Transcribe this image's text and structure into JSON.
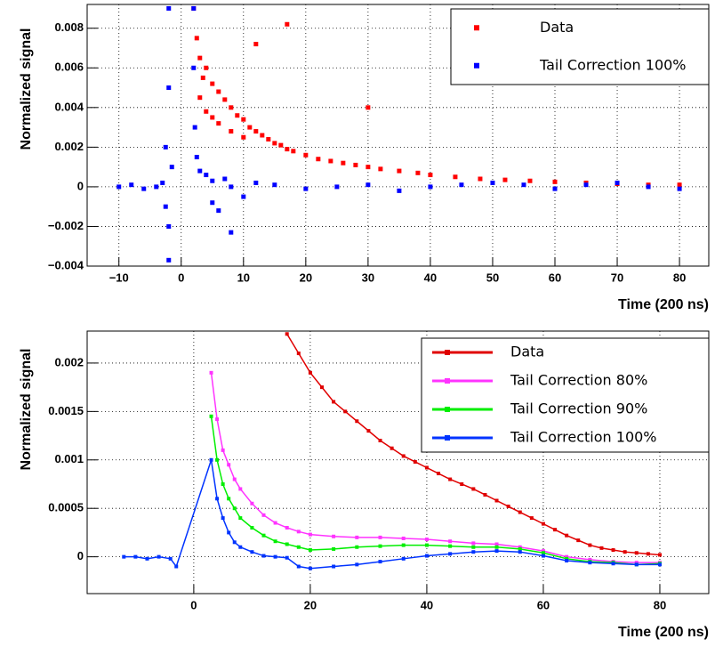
{
  "chart_data": [
    {
      "type": "scatter",
      "y_label": "Normalized signal",
      "x_label": "Time (200 ns)",
      "xlim": [
        -15.1,
        84.7
      ],
      "ylim": [
        -0.004,
        0.0092
      ],
      "xticks": [
        {
          "value": -10,
          "label": "−10"
        },
        0,
        10,
        20,
        30,
        40,
        50,
        60,
        70,
        80
      ],
      "yticks": [
        {
          "value": -0.004,
          "label": "−0.004"
        },
        {
          "value": -0.002,
          "label": "−0.002"
        },
        0,
        0.002,
        0.004,
        0.006,
        0.008
      ],
      "grid": true,
      "legend": "upper right",
      "series": [
        {
          "name": "Data",
          "color": "#ff0000",
          "x": [
            2,
            2.5,
            3,
            3,
            3.5,
            4,
            4,
            5,
            5,
            6,
            6,
            7,
            8,
            8,
            9,
            10,
            10,
            11,
            12,
            13,
            14,
            15,
            16,
            17,
            18,
            20,
            22,
            24,
            26,
            28,
            30,
            32,
            35,
            38,
            40,
            44,
            48,
            52,
            56,
            60,
            65,
            70,
            75,
            80,
            17,
            30,
            12
          ],
          "values": [
            0.009,
            0.0075,
            0.0065,
            0.0045,
            0.0055,
            0.006,
            0.0038,
            0.0052,
            0.0035,
            0.0048,
            0.0032,
            0.0044,
            0.004,
            0.0028,
            0.0036,
            0.0034,
            0.0025,
            0.003,
            0.0028,
            0.0026,
            0.0024,
            0.0022,
            0.0021,
            0.0019,
            0.0018,
            0.0016,
            0.0014,
            0.0013,
            0.0012,
            0.0011,
            0.001,
            0.0009,
            0.0008,
            0.0007,
            0.0006,
            0.0005,
            0.0004,
            0.00035,
            0.0003,
            0.00025,
            0.0002,
            0.00015,
            0.0001,
            0.0001,
            0.0082,
            0.004,
            0.0072
          ]
        },
        {
          "name": "Tail Correction 100%",
          "color": "#0000ff",
          "x": [
            -10,
            -8,
            -6,
            -4,
            -3,
            -2.5,
            -2.5,
            -2,
            -2,
            -2,
            -1.5,
            2,
            2,
            2.2,
            2.5,
            3,
            4,
            5,
            5,
            6,
            7,
            8,
            8,
            10,
            12,
            15,
            20,
            25,
            30,
            35,
            40,
            45,
            50,
            55,
            60,
            65,
            70,
            75,
            80,
            -2
          ],
          "values": [
            0,
            0.0001,
            -0.0001,
            0,
            0.0002,
            0.002,
            -0.001,
            0.005,
            0.009,
            -0.002,
            0.001,
            0.009,
            0.006,
            0.003,
            0.0015,
            0.0008,
            0.0006,
            -0.0008,
            0.0003,
            -0.0012,
            0.0004,
            -0.0023,
            0,
            -0.0005,
            0.0002,
            0.0001,
            -0.0001,
            0,
            0.0001,
            -0.0002,
            0,
            0.0001,
            0.0002,
            0.0001,
            -0.0001,
            0.0001,
            0.0002,
            0,
            -0.0001,
            -0.0037
          ]
        }
      ]
    },
    {
      "type": "line",
      "y_label": "Normalized signal",
      "x_label": "Time (200 ns)",
      "xlim": [
        -18.3,
        88.4
      ],
      "ylim": [
        -0.00038,
        0.00233
      ],
      "xticks": [
        0,
        20,
        40,
        60,
        80
      ],
      "yticks": [
        0,
        0.0005,
        0.001,
        0.0015,
        0.002
      ],
      "grid": true,
      "legend": "upper right",
      "series": [
        {
          "name": "Data",
          "color": "#e00000",
          "x": [
            16,
            18,
            20,
            22,
            24,
            26,
            28,
            30,
            32,
            34,
            36,
            38,
            40,
            42,
            44,
            46,
            48,
            50,
            52,
            54,
            56,
            58,
            60,
            62,
            64,
            66,
            68,
            70,
            72,
            74,
            76,
            78,
            80
          ],
          "values": [
            0.0023,
            0.0021,
            0.0019,
            0.00175,
            0.0016,
            0.0015,
            0.0014,
            0.0013,
            0.0012,
            0.00112,
            0.00104,
            0.00098,
            0.00092,
            0.00086,
            0.0008,
            0.00075,
            0.0007,
            0.00064,
            0.00058,
            0.00052,
            0.00046,
            0.0004,
            0.00034,
            0.00028,
            0.00022,
            0.00017,
            0.00012,
            9e-05,
            7e-05,
            5e-05,
            4e-05,
            3e-05,
            2e-05
          ]
        },
        {
          "name": "Tail Correction 80%",
          "color": "#ff33ff",
          "x": [
            3,
            4,
            5,
            6,
            7,
            8,
            10,
            12,
            14,
            16,
            18,
            20,
            24,
            28,
            32,
            36,
            40,
            44,
            48,
            52,
            56,
            60,
            64,
            68,
            72,
            76,
            80
          ],
          "values": [
            0.0019,
            0.00142,
            0.0011,
            0.00095,
            0.0008,
            0.0007,
            0.00055,
            0.00043,
            0.00035,
            0.0003,
            0.00026,
            0.00023,
            0.00021,
            0.0002,
            0.0002,
            0.00019,
            0.00018,
            0.00016,
            0.00014,
            0.00013,
            0.0001,
            6e-05,
            0,
            -3e-05,
            -5e-05,
            -6e-05,
            -6e-05
          ]
        },
        {
          "name": "Tail Correction 90%",
          "color": "#00ee00",
          "x": [
            3,
            4,
            5,
            6,
            7,
            8,
            10,
            12,
            14,
            16,
            18,
            20,
            24,
            28,
            32,
            36,
            40,
            44,
            48,
            52,
            56,
            60,
            64,
            68,
            72,
            76,
            80
          ],
          "values": [
            0.00145,
            0.001,
            0.00075,
            0.0006,
            0.0005,
            0.0004,
            0.0003,
            0.00022,
            0.00016,
            0.00013,
            0.0001,
            7e-05,
            8e-05,
            0.0001,
            0.00011,
            0.00012,
            0.00012,
            0.00011,
            0.0001,
            0.0001,
            8e-05,
            4e-05,
            -2e-05,
            -5e-05,
            -6e-05,
            -8e-05,
            -7e-05
          ]
        },
        {
          "name": "Tail Correction 100%",
          "color": "#0033ff",
          "x": [
            -12,
            -10,
            -8,
            -6,
            -4,
            -3,
            3,
            4,
            5,
            6,
            7,
            8,
            10,
            12,
            14,
            16,
            18,
            20,
            24,
            28,
            32,
            36,
            40,
            44,
            48,
            52,
            56,
            60,
            64,
            68,
            72,
            76,
            80
          ],
          "values": [
            0,
            0,
            -2e-05,
            0,
            -2e-05,
            -0.0001,
            0.001,
            0.0006,
            0.0004,
            0.00025,
            0.00015,
            0.0001,
            5e-05,
            1e-05,
            0,
            -1e-05,
            -0.0001,
            -0.00012,
            -0.0001,
            -8e-05,
            -5e-05,
            -2e-05,
            1e-05,
            3e-05,
            5e-05,
            6e-05,
            5e-05,
            1e-05,
            -4e-05,
            -6e-05,
            -7e-05,
            -8e-05,
            -8e-05
          ]
        }
      ]
    }
  ]
}
